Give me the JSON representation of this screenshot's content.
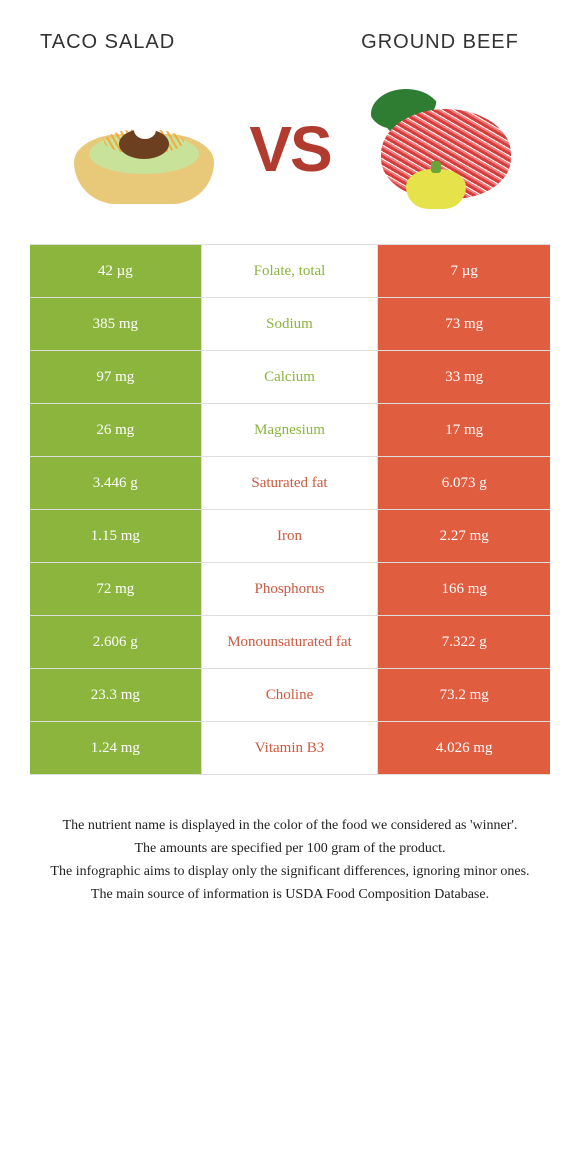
{
  "colors": {
    "left": "#8bb53d",
    "right": "#e15d40",
    "left_text": "#8bb53d",
    "right_text": "#cc5a3f",
    "border": "#dddddd",
    "vs": "#b13b2e"
  },
  "header": {
    "left_title": "TACO SALAD",
    "right_title": "GROUND BEEF",
    "vs": "VS"
  },
  "rows": [
    {
      "left": "42 µg",
      "label": "Folate, total",
      "right": "7 µg",
      "winner": "left"
    },
    {
      "left": "385 mg",
      "label": "Sodium",
      "right": "73 mg",
      "winner": "left"
    },
    {
      "left": "97 mg",
      "label": "Calcium",
      "right": "33 mg",
      "winner": "left"
    },
    {
      "left": "26 mg",
      "label": "Magnesium",
      "right": "17 mg",
      "winner": "left"
    },
    {
      "left": "3.446 g",
      "label": "Saturated fat",
      "right": "6.073 g",
      "winner": "right"
    },
    {
      "left": "1.15 mg",
      "label": "Iron",
      "right": "2.27 mg",
      "winner": "right"
    },
    {
      "left": "72 mg",
      "label": "Phosphorus",
      "right": "166 mg",
      "winner": "right"
    },
    {
      "left": "2.606 g",
      "label": "Monounsaturated fat",
      "right": "7.322 g",
      "winner": "right"
    },
    {
      "left": "23.3 mg",
      "label": "Choline",
      "right": "73.2 mg",
      "winner": "right"
    },
    {
      "left": "1.24 mg",
      "label": "Vitamin B3",
      "right": "4.026 mg",
      "winner": "right"
    }
  ],
  "footer": {
    "line1": "The nutrient name is displayed in the color of the food we considered as 'winner'.",
    "line2": "The amounts are specified per 100 gram of the product.",
    "line3": "The infographic aims to display only the significant differences, ignoring minor ones.",
    "line4": "The main source of information is USDA Food Composition Database."
  }
}
